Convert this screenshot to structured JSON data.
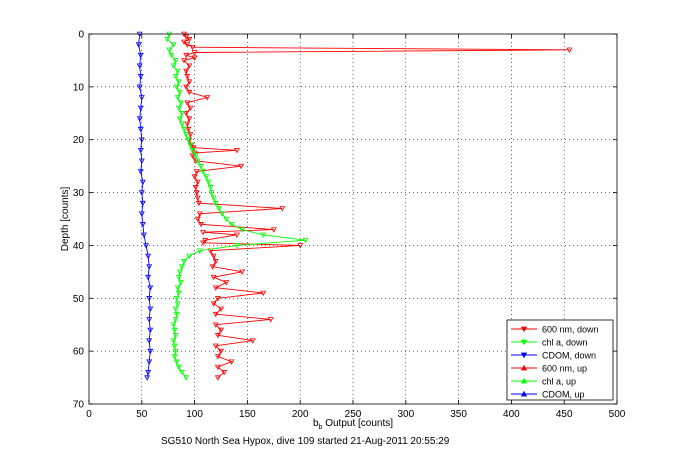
{
  "chart_data": {
    "type": "line",
    "xlabel_main": "b",
    "xlabel_sub": "b",
    "xlabel_rest": " Output [counts]",
    "ylabel": "Depth [counts]",
    "footer": "SG510 North Sea Hypox, dive 109 started 21-Aug-2011 20:55:29",
    "xlim": [
      0,
      500
    ],
    "ylim": [
      0,
      70
    ],
    "y_reversed": true,
    "grid": true,
    "legend_position": "bottom-right",
    "xticks": [
      "0",
      "50",
      "100",
      "150",
      "200",
      "250",
      "300",
      "350",
      "400",
      "450",
      "500"
    ],
    "yticks": [
      "0",
      "10",
      "20",
      "30",
      "40",
      "50",
      "60",
      "70"
    ],
    "series": [
      {
        "name": "600 nm, down",
        "color": "#ff0000",
        "marker": "triangle-down",
        "points": [
          [
            90,
            0
          ],
          [
            92,
            0.5
          ],
          [
            95,
            1
          ],
          [
            90,
            1.5
          ],
          [
            93,
            2
          ],
          [
            98,
            2.5
          ],
          [
            455,
            3
          ],
          [
            100,
            3.5
          ],
          [
            92,
            4
          ],
          [
            100,
            4.5
          ],
          [
            90,
            5
          ],
          [
            95,
            6
          ],
          [
            92,
            7
          ],
          [
            93,
            8
          ],
          [
            95,
            9
          ],
          [
            92,
            10
          ],
          [
            95,
            11
          ],
          [
            112,
            12
          ],
          [
            93,
            13
          ],
          [
            96,
            14
          ],
          [
            92,
            15
          ],
          [
            95,
            16
          ],
          [
            93,
            17
          ],
          [
            94,
            18
          ],
          [
            96,
            19
          ],
          [
            95,
            20
          ],
          [
            97,
            21
          ],
          [
            99,
            21.5
          ],
          [
            140,
            22
          ],
          [
            100,
            22.5
          ],
          [
            98,
            23
          ],
          [
            101,
            24
          ],
          [
            144,
            25
          ],
          [
            102,
            26
          ],
          [
            100,
            27
          ],
          [
            103,
            28
          ],
          [
            101,
            29
          ],
          [
            102,
            30
          ],
          [
            103,
            31
          ],
          [
            104,
            32
          ],
          [
            183,
            33
          ],
          [
            105,
            34
          ],
          [
            103,
            35
          ],
          [
            106,
            36
          ],
          [
            175,
            37
          ],
          [
            108,
            37.5
          ],
          [
            140,
            38
          ],
          [
            110,
            39
          ],
          [
            108,
            39.5
          ],
          [
            200,
            40
          ],
          [
            115,
            41
          ],
          [
            118,
            42
          ],
          [
            120,
            43
          ],
          [
            117,
            44
          ],
          [
            145,
            45
          ],
          [
            118,
            46
          ],
          [
            130,
            47
          ],
          [
            120,
            48
          ],
          [
            165,
            49
          ],
          [
            122,
            50
          ],
          [
            118,
            51
          ],
          [
            125,
            52
          ],
          [
            120,
            53
          ],
          [
            172,
            54
          ],
          [
            120,
            55
          ],
          [
            125,
            56
          ],
          [
            122,
            57
          ],
          [
            155,
            58
          ],
          [
            120,
            59
          ],
          [
            125,
            60
          ],
          [
            122,
            61
          ],
          [
            135,
            62
          ],
          [
            122,
            63
          ],
          [
            128,
            64
          ],
          [
            122,
            65
          ]
        ]
      },
      {
        "name": "chl a, down",
        "color": "#00ff00",
        "marker": "triangle-down",
        "points": [
          [
            76,
            0
          ],
          [
            74,
            1
          ],
          [
            80,
            2
          ],
          [
            76,
            3
          ],
          [
            78,
            4
          ],
          [
            82,
            5
          ],
          [
            80,
            6
          ],
          [
            84,
            7
          ],
          [
            82,
            8
          ],
          [
            85,
            9
          ],
          [
            83,
            10
          ],
          [
            86,
            11
          ],
          [
            84,
            12
          ],
          [
            87,
            13
          ],
          [
            85,
            14
          ],
          [
            88,
            15
          ],
          [
            86,
            16
          ],
          [
            88,
            17
          ],
          [
            90,
            18
          ],
          [
            92,
            19
          ],
          [
            94,
            20
          ],
          [
            96,
            21
          ],
          [
            98,
            22
          ],
          [
            101,
            23
          ],
          [
            103,
            24
          ],
          [
            106,
            25
          ],
          [
            108,
            26
          ],
          [
            111,
            27
          ],
          [
            113,
            28
          ],
          [
            115,
            29
          ],
          [
            116,
            30
          ],
          [
            118,
            31
          ],
          [
            120,
            32
          ],
          [
            123,
            33
          ],
          [
            126,
            34
          ],
          [
            130,
            35
          ],
          [
            135,
            36
          ],
          [
            145,
            37
          ],
          [
            165,
            38
          ],
          [
            205,
            39
          ],
          [
            140,
            40
          ],
          [
            105,
            41
          ],
          [
            95,
            42
          ],
          [
            90,
            43
          ],
          [
            88,
            44
          ],
          [
            86,
            45
          ],
          [
            85,
            46
          ],
          [
            87,
            47
          ],
          [
            84,
            48
          ],
          [
            85,
            49
          ],
          [
            83,
            50
          ],
          [
            84,
            51
          ],
          [
            82,
            52
          ],
          [
            83,
            53
          ],
          [
            82,
            54
          ],
          [
            80,
            55
          ],
          [
            81,
            56
          ],
          [
            82,
            57
          ],
          [
            80,
            58
          ],
          [
            81,
            59
          ],
          [
            82,
            60
          ],
          [
            81,
            61
          ],
          [
            83,
            62
          ],
          [
            85,
            63
          ],
          [
            88,
            64
          ],
          [
            92,
            65
          ]
        ]
      },
      {
        "name": "CDOM, down",
        "color": "#0000ff",
        "marker": "triangle-down",
        "points": [
          [
            48,
            0
          ],
          [
            47,
            2
          ],
          [
            49,
            4
          ],
          [
            48,
            6
          ],
          [
            49,
            8
          ],
          [
            48,
            10
          ],
          [
            50,
            12
          ],
          [
            49,
            14
          ],
          [
            48,
            16
          ],
          [
            49,
            18
          ],
          [
            50,
            20
          ],
          [
            49,
            22
          ],
          [
            50,
            24
          ],
          [
            49,
            26
          ],
          [
            51,
            28
          ],
          [
            50,
            30
          ],
          [
            51,
            32
          ],
          [
            50,
            34
          ],
          [
            51,
            36
          ],
          [
            52,
            38
          ],
          [
            54,
            40
          ],
          [
            56,
            42
          ],
          [
            57,
            44
          ],
          [
            56,
            46
          ],
          [
            58,
            48
          ],
          [
            57,
            50
          ],
          [
            58,
            52
          ],
          [
            57,
            54
          ],
          [
            58,
            56
          ],
          [
            57,
            58
          ],
          [
            58,
            60
          ],
          [
            57,
            62
          ],
          [
            56,
            64
          ],
          [
            55,
            65
          ]
        ]
      },
      {
        "name": "600 nm, up",
        "color": "#ff0000",
        "marker": "triangle-up",
        "points": []
      },
      {
        "name": "chl a, up",
        "color": "#00ff00",
        "marker": "triangle-up",
        "points": []
      },
      {
        "name": "CDOM, up",
        "color": "#0000ff",
        "marker": "triangle-up",
        "points": []
      }
    ]
  }
}
